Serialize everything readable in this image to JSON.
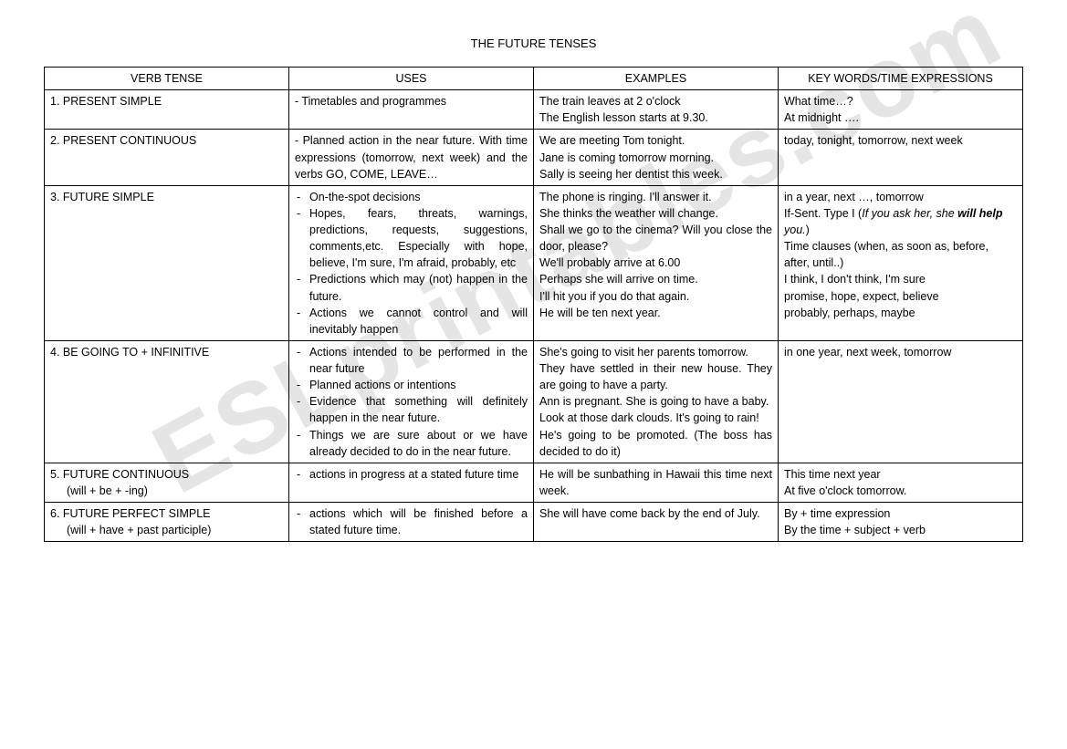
{
  "title": "THE FUTURE TENSES",
  "headers": {
    "c1": "VERB TENSE",
    "c2": "USES",
    "c3": "EXAMPLES",
    "c4": "KEY WORDS/TIME EXPRESSIONS"
  },
  "row1": {
    "tense": "1. PRESENT SIMPLE",
    "use": "- Timetables and programmes",
    "ex1": "The train leaves at 2 o'clock",
    "ex2": "The English lesson starts at 9.30.",
    "kw1": "What time…?",
    "kw2": "At midnight …."
  },
  "row2": {
    "tense": "2. PRESENT CONTINUOUS",
    "use": "- Planned action in the near future. With time expressions (tomorrow, next week) and the verbs GO, COME, LEAVE…",
    "ex1": "We are meeting Tom tonight.",
    "ex2": "Jane is coming tomorrow morning.",
    "ex3": "Sally is seeing her dentist this week.",
    "kw": "today, tonight, tomorrow, next week"
  },
  "row3": {
    "tense": "3. FUTURE SIMPLE",
    "u1": "On-the-spot decisions",
    "u2": "Hopes, fears, threats, warnings, predictions, requests, suggestions, comments,etc. Especially with hope, believe, I'm sure, I'm afraid, probably, etc",
    "u3": "Predictions which may (not) happen in the future.",
    "u4": "Actions we cannot control and will inevitably happen",
    "ex1": "The phone is ringing. I'll answer it.",
    "ex2": "She thinks the weather will change.",
    "ex3": "Shall we go to the cinema? Will you close the door, please?",
    "ex4": "We'll probably arrive at 6.00",
    "ex5": "Perhaps she will arrive on time.",
    "ex6": "I'll hit you if you do that again.",
    "ex7": "He will be ten next year.",
    "kw1": "in a year, next …, tomorrow",
    "kw2a": "If-Sent. Type I (",
    "kw2b": "If you ask her, she ",
    "kw2c": "will help",
    "kw2d": " you.",
    "kw2e": ")",
    "kw3": "Time clauses (when, as soon as, before, after, until..)",
    "kw4": "I think, I don't think, I'm sure",
    "kw5": "promise, hope, expect, believe",
    "kw6": "probably, perhaps, maybe"
  },
  "row4": {
    "tense": "4. BE GOING TO + INFINITIVE",
    "u1": "Actions intended to be performed in the near future",
    "u2": "Planned actions or intentions",
    "u3": "Evidence that something will definitely happen in the near future.",
    "u4": "Things we are sure about or we have already decided to do in the near future.",
    "ex1": "She's going to visit her parents tomorrow.",
    "ex2": "They have settled in their new house. They are going to have a party.",
    "ex3": "Ann is pregnant. She is going to have a baby.",
    "ex4": "Look at those dark clouds. It's going to rain!",
    "ex5": "He's going to be promoted. (The boss has decided to do it)",
    "kw": "in one year, next week, tomorrow"
  },
  "row5": {
    "tense1": "5. FUTURE CONTINUOUS",
    "tense2": "(will + be + -ing)",
    "u1": "actions in progress at a stated future time",
    "ex": " He will be sunbathing in Hawaii this time next week.",
    "kw1": "This time next year",
    "kw2": "At five o'clock tomorrow."
  },
  "row6": {
    "tense1": "6. FUTURE PERFECT SIMPLE",
    "tense2": "(will + have + past participle)",
    "u1": "actions which will be finished before a stated future time.",
    "ex": "She will have come back by the end of July.",
    "kw1": "By + time expression",
    "kw2": "By the time + subject + verb"
  },
  "watermark": "ESLprintables.com"
}
